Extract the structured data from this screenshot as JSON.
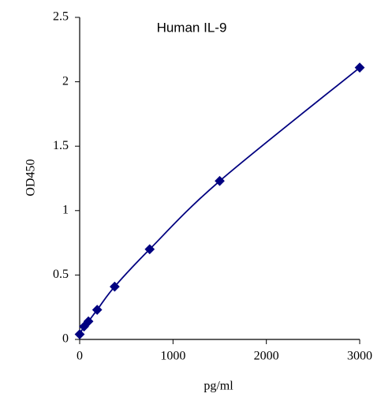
{
  "chart_data": {
    "type": "scatter",
    "title": "Human IL-9",
    "x_label": "pg/ml",
    "y_label": "OD450",
    "series": [
      {
        "name": "IL-9",
        "color": "#000080",
        "x": [
          0,
          46.88,
          93.75,
          187.5,
          375,
          750,
          1500,
          3000
        ],
        "values": [
          0.04,
          0.1,
          0.14,
          0.23,
          0.41,
          0.7,
          1.23,
          2.11
        ]
      }
    ],
    "xlim": [
      0,
      3000
    ],
    "xticks": [
      0,
      1000,
      2000,
      3000
    ],
    "ylim": [
      0,
      2.5
    ],
    "yticks": [
      0,
      0.5,
      1,
      1.5,
      2,
      2.5
    ],
    "grid": false
  }
}
